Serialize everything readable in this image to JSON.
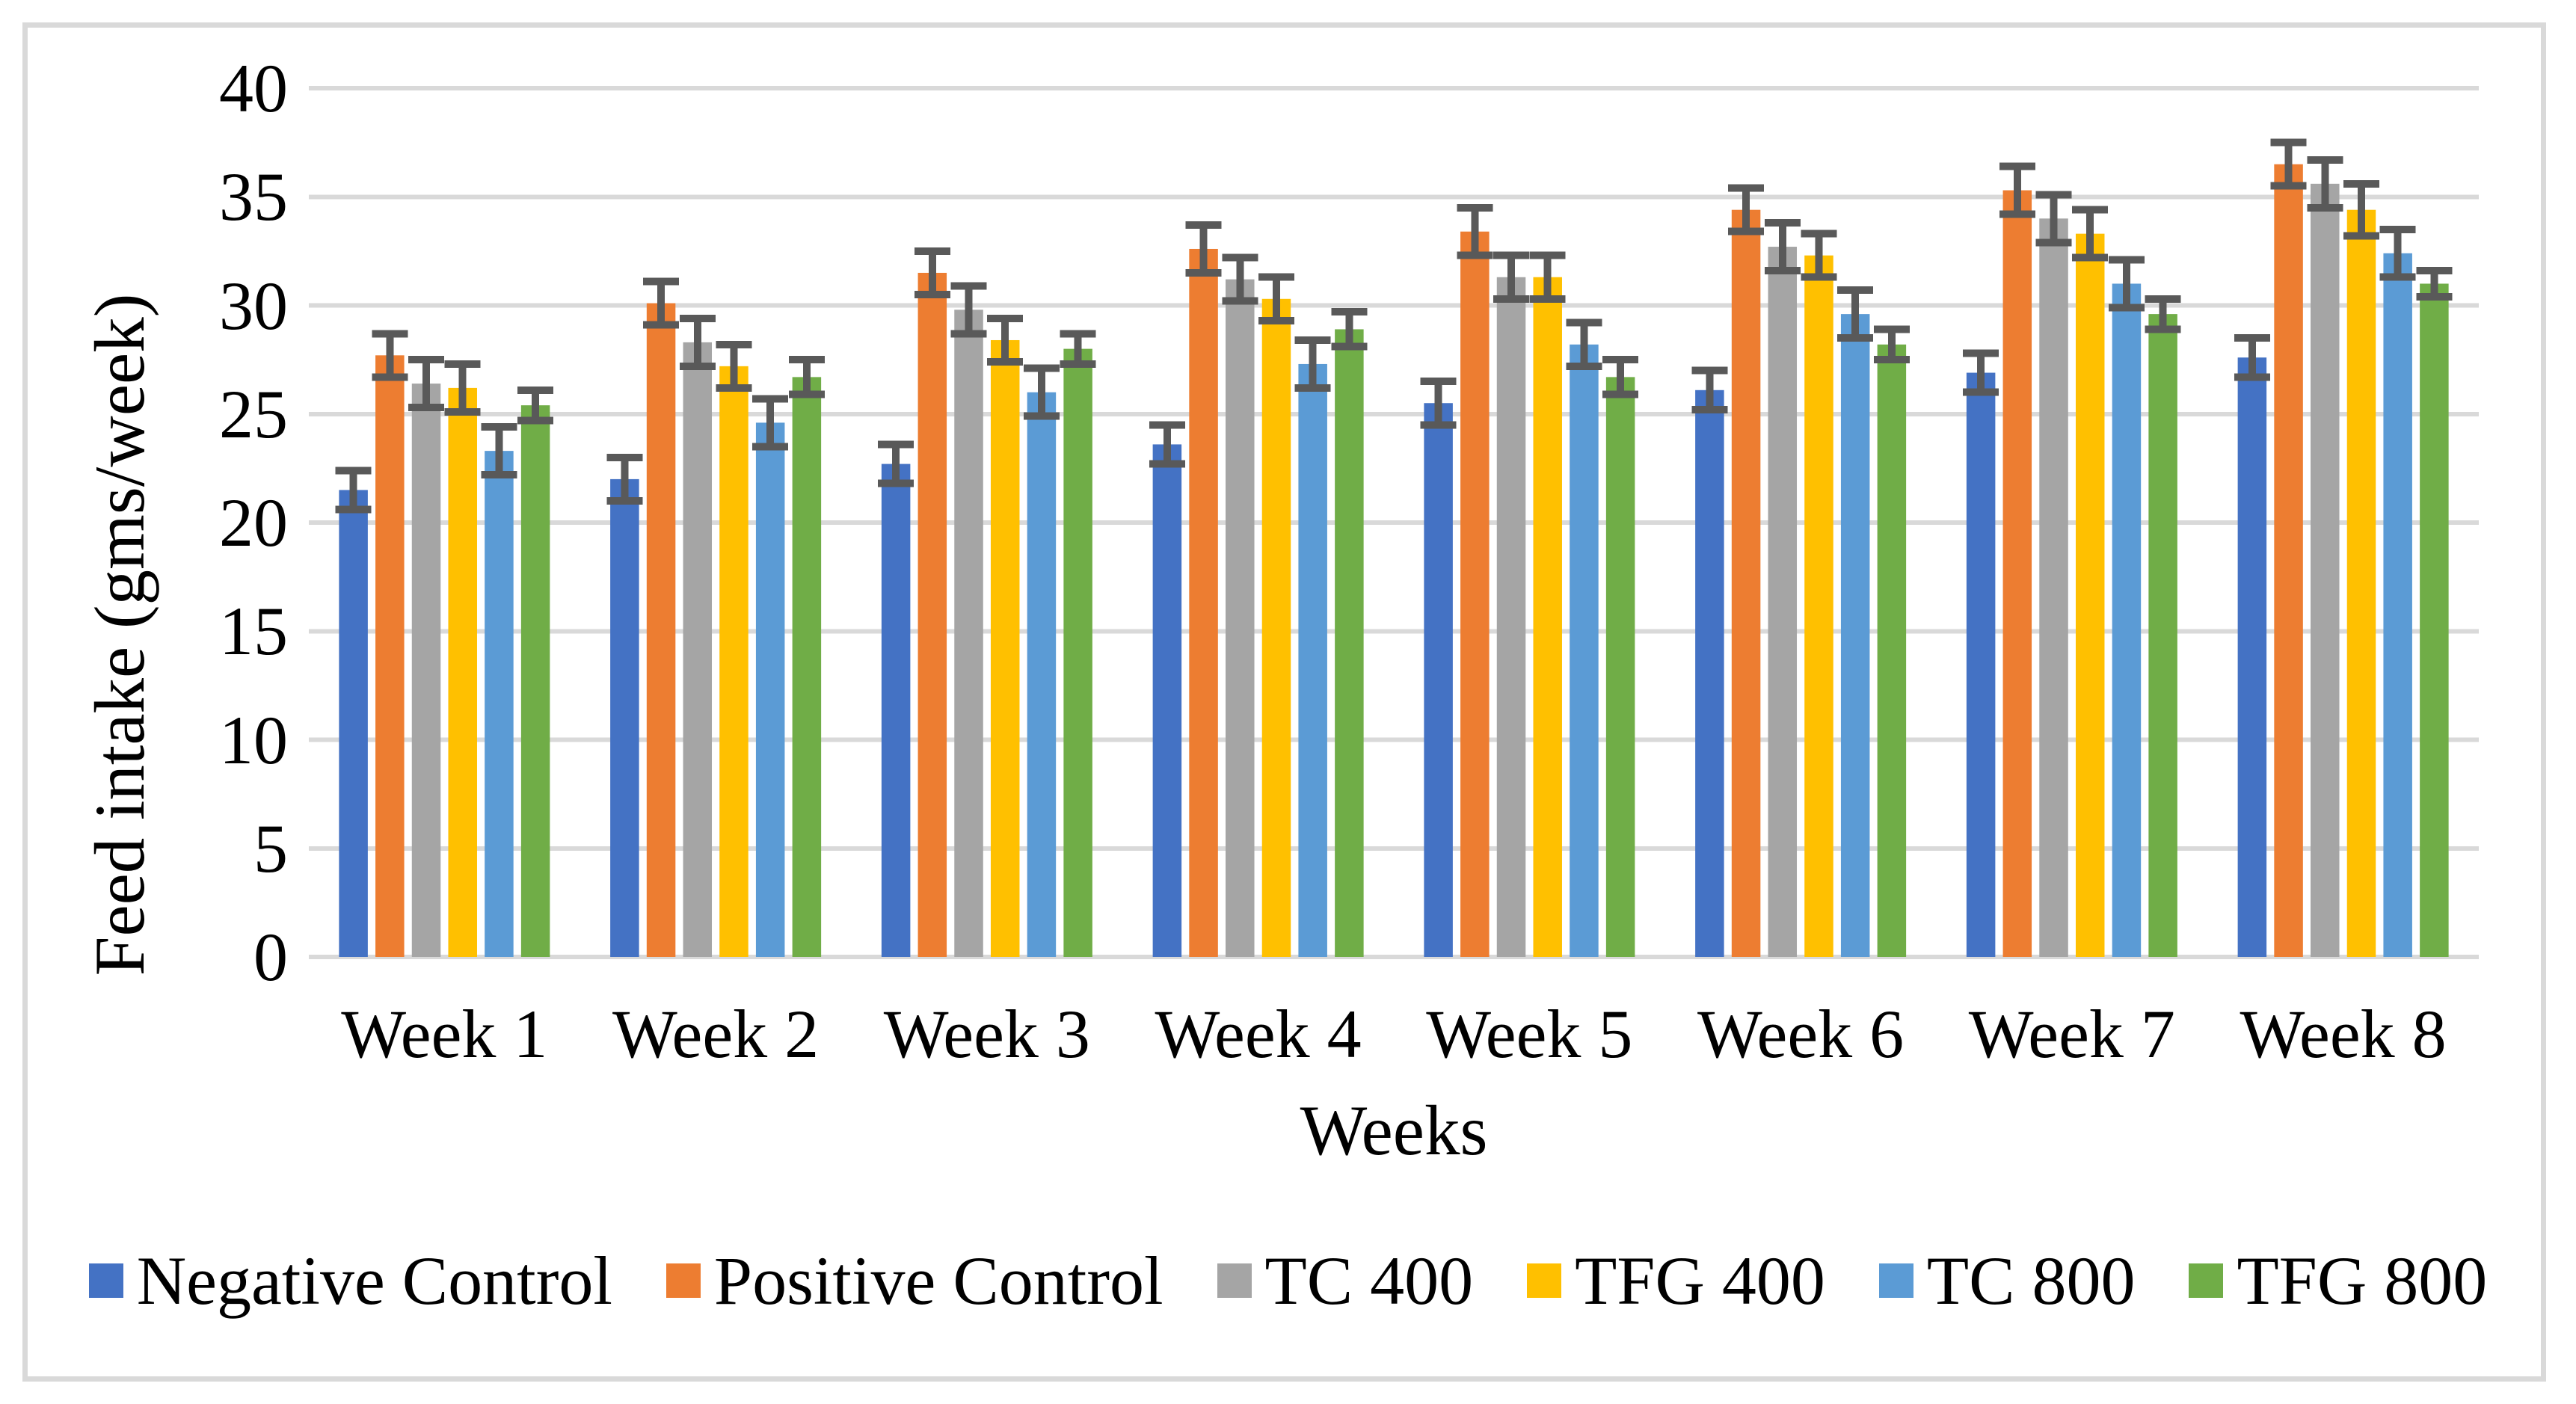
{
  "figure": {
    "y_axis_title": "Feed intake (gms/week)",
    "x_axis_title": "Weeks"
  },
  "chart_data": {
    "type": "bar",
    "title": "",
    "xlabel": "Weeks",
    "ylabel": "Feed intake (gms/week)",
    "ylim": [
      0,
      40
    ],
    "ytick_step": 5,
    "yticks": [
      0,
      5,
      10,
      15,
      20,
      25,
      30,
      35,
      40
    ],
    "grid": true,
    "legend_position": "bottom",
    "error_bars": true,
    "categories": [
      "Week 1",
      "Week 2",
      "Week 3",
      "Week 4",
      "Week 5",
      "Week 6",
      "Week 7",
      "Week 8"
    ],
    "series": [
      {
        "name": "Negative Control",
        "color": "#4472C4",
        "values": [
          21.5,
          22.0,
          22.7,
          23.6,
          25.5,
          26.1,
          26.9,
          27.6
        ],
        "errors": [
          0.9,
          1.0,
          0.9,
          0.9,
          1.0,
          0.9,
          0.9,
          0.9
        ]
      },
      {
        "name": "Positive Control",
        "color": "#ED7D31",
        "values": [
          27.7,
          30.1,
          31.5,
          32.6,
          33.4,
          34.4,
          35.3,
          36.5
        ],
        "errors": [
          1.0,
          1.0,
          1.0,
          1.1,
          1.1,
          1.0,
          1.1,
          1.0
        ]
      },
      {
        "name": "TC 400",
        "color": "#A5A5A5",
        "values": [
          26.4,
          28.3,
          29.8,
          31.2,
          31.3,
          32.7,
          34.0,
          35.6
        ],
        "errors": [
          1.1,
          1.1,
          1.1,
          1.0,
          1.0,
          1.1,
          1.1,
          1.1
        ]
      },
      {
        "name": "TFG 400",
        "color": "#FFC000",
        "values": [
          26.2,
          27.2,
          28.4,
          30.3,
          31.3,
          32.3,
          33.3,
          34.4
        ],
        "errors": [
          1.1,
          1.0,
          1.0,
          1.0,
          1.0,
          1.0,
          1.1,
          1.2
        ]
      },
      {
        "name": "TC 800",
        "color": "#5B9BD5",
        "values": [
          23.3,
          24.6,
          26.0,
          27.3,
          28.2,
          29.6,
          31.0,
          32.4
        ],
        "errors": [
          1.1,
          1.1,
          1.1,
          1.1,
          1.0,
          1.1,
          1.1,
          1.1
        ]
      },
      {
        "name": "TFG 800",
        "color": "#70AD47",
        "values": [
          25.4,
          26.7,
          28.0,
          28.9,
          26.7,
          28.2,
          29.6,
          31.0
        ],
        "errors": [
          0.7,
          0.8,
          0.7,
          0.8,
          0.8,
          0.7,
          0.7,
          0.6
        ]
      }
    ],
    "gridline_color": "#D9D9D9",
    "axis_line_color": "#D9D9D9",
    "error_bar_color": "#595959",
    "border_color": "#D9D9D9"
  }
}
